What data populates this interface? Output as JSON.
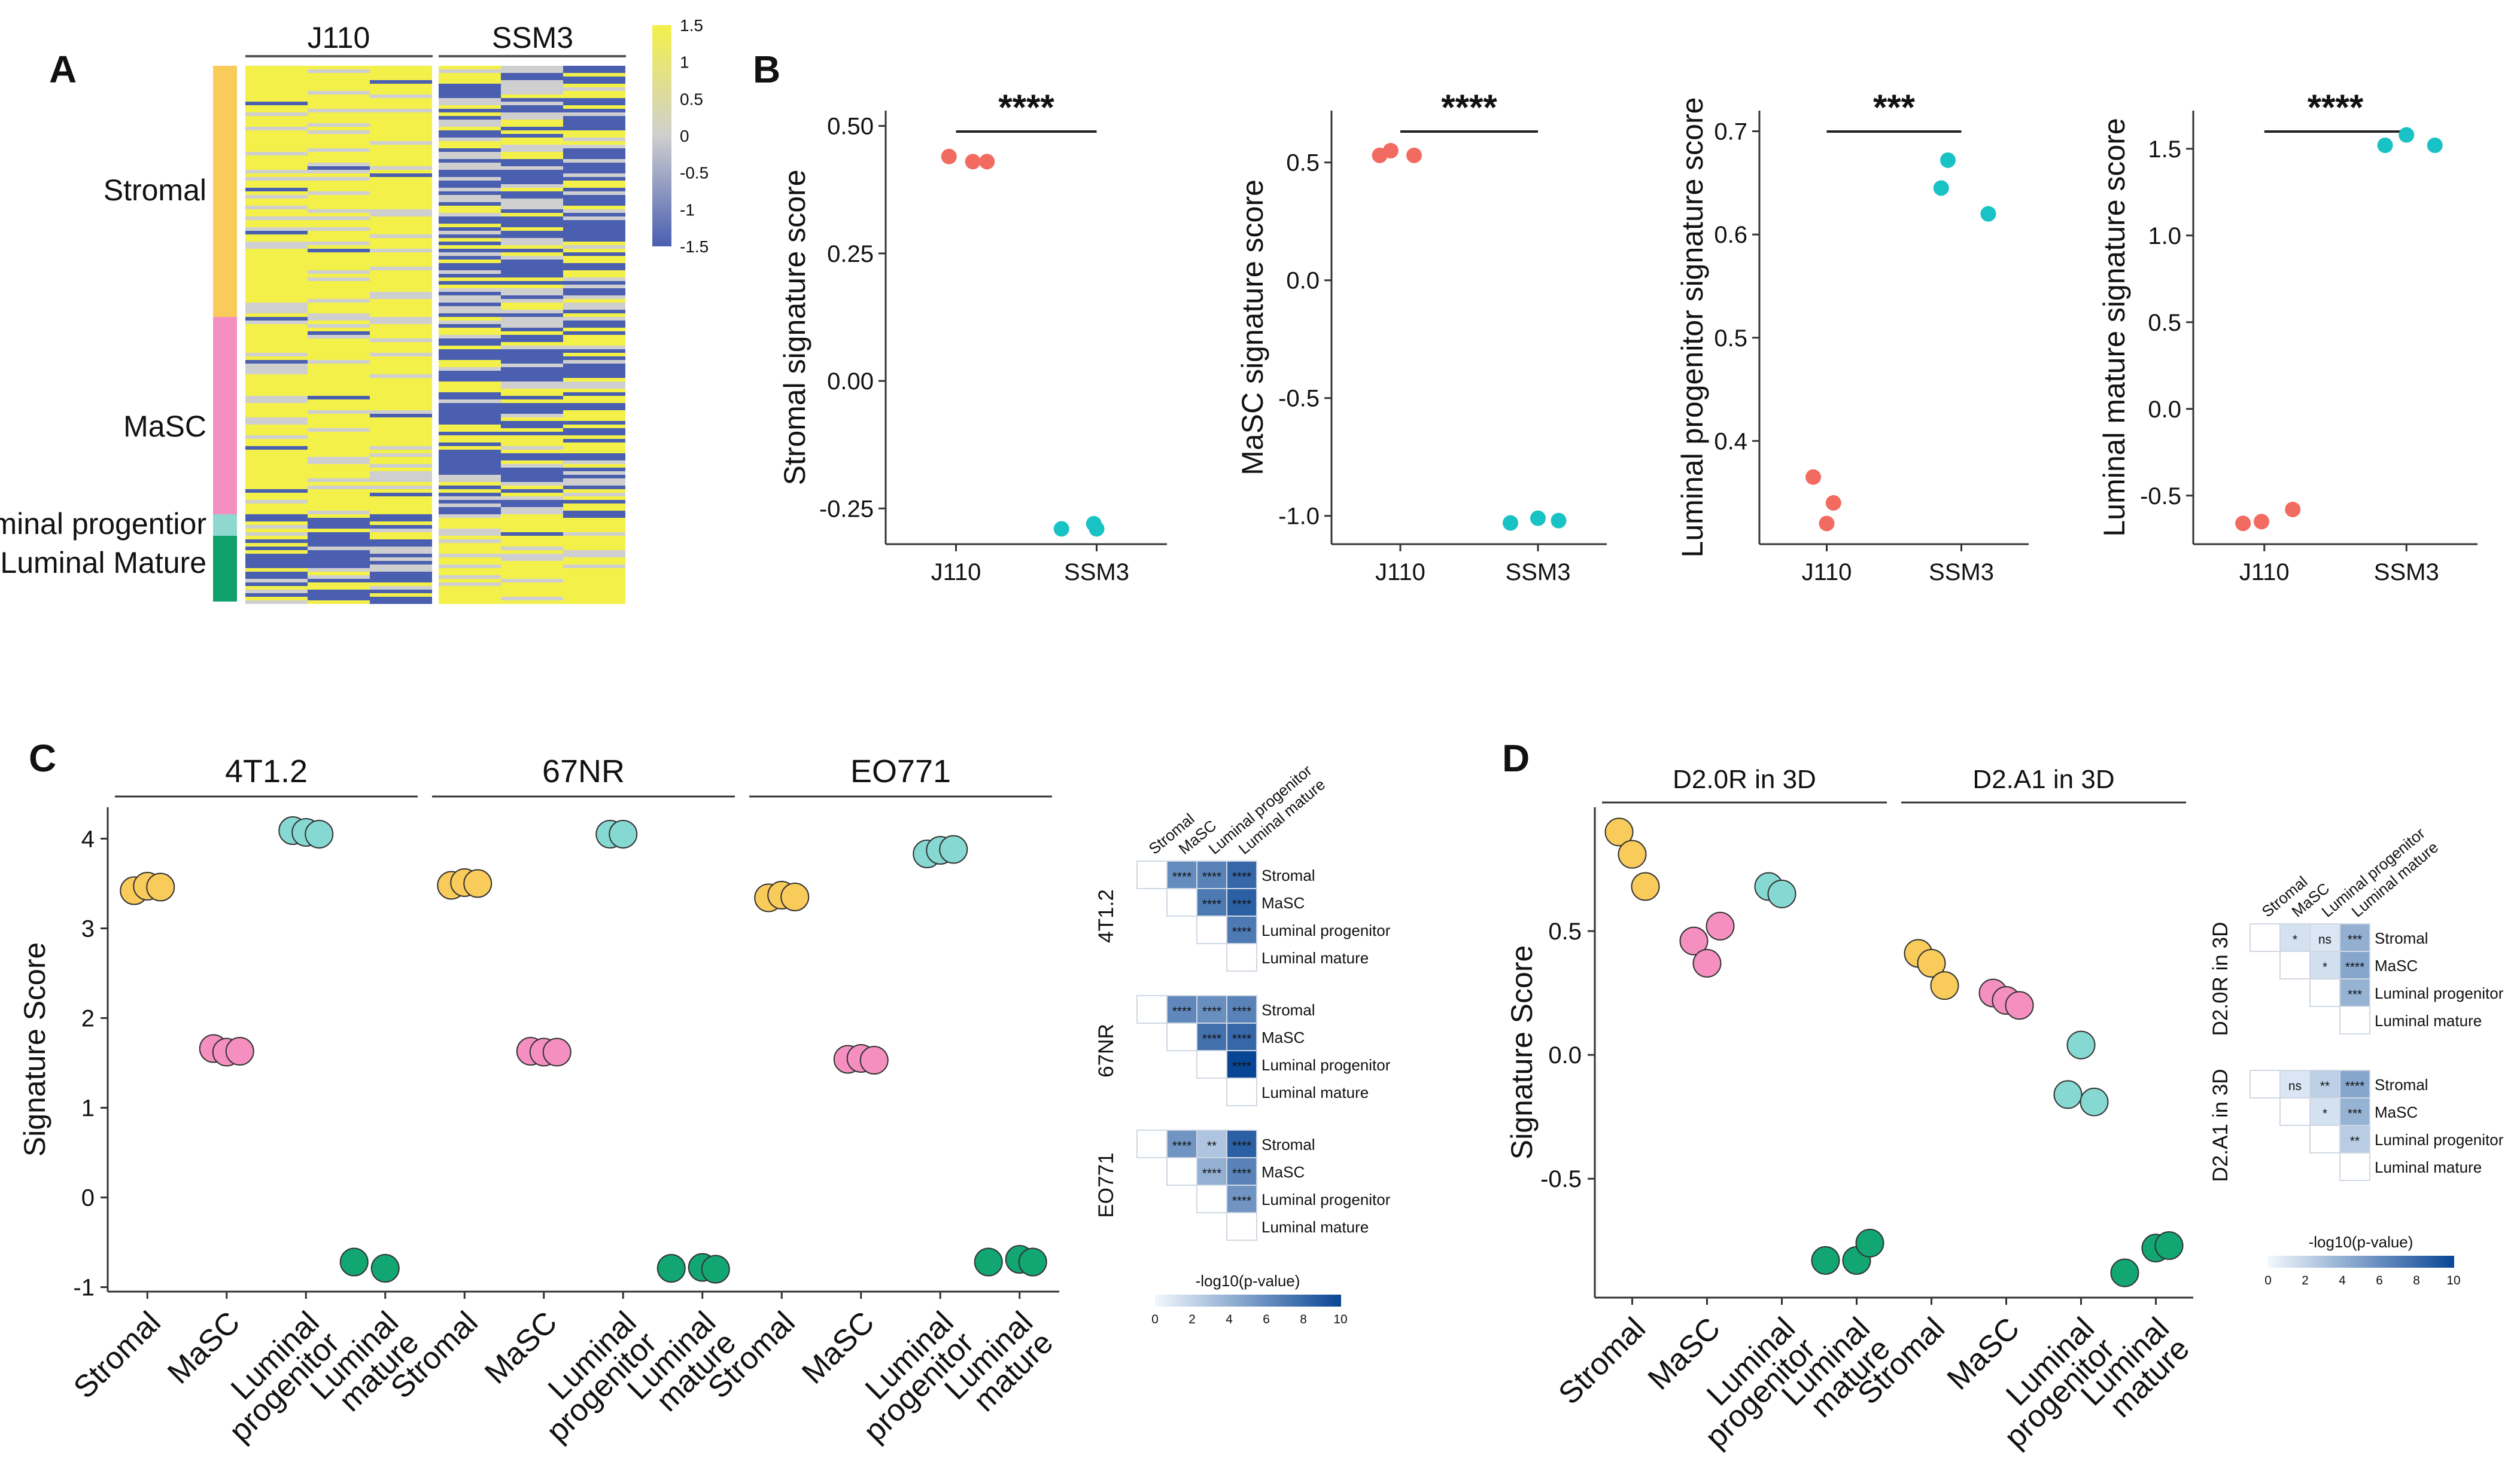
{
  "panels": {
    "A": "A",
    "B": "B",
    "C": "C",
    "D": "D"
  },
  "colors": {
    "red": "#f26b60",
    "cyan": "#19c2c4",
    "stromal": "#f9cb5b",
    "masc": "#f48fc0",
    "lp": "#86d9d2",
    "lm": "#12a673",
    "hm_low": "#4a5fb0",
    "hm_mid": "#cfcfcf",
    "hm_high": "#f3f04a",
    "bar_stromal": "#f7c85c",
    "bar_masc": "#f38bbd",
    "bar_lp": "#8ed8d0",
    "bar_lm": "#0fa06c"
  },
  "heatmap": {
    "groups": [
      "J110",
      "SSM3"
    ],
    "row_labels": [
      "Stromal",
      "MaSC",
      "Luminal progentior",
      "Luminal Mature"
    ],
    "colorbar_ticks": [
      "1.5",
      "1",
      "0.5",
      "0",
      "-0.5",
      "-1",
      "-1.5"
    ]
  },
  "chart_data": [
    {
      "type": "scatter",
      "panel": "B",
      "ylabel": "Stromal signature score",
      "categories": [
        "J110",
        "SSM3"
      ],
      "ylim": [
        -0.32,
        0.53
      ],
      "yticks": [
        0.5,
        0.25,
        0.0,
        -0.25
      ],
      "ytick_labels": [
        "0.50",
        "0.25",
        "0.00",
        "-0.25"
      ],
      "sig": "****",
      "series": [
        {
          "name": "J110",
          "color": "#f26b60",
          "points": [
            [
              0.95,
              0.44
            ],
            [
              1.12,
              0.43
            ],
            [
              1.22,
              0.43
            ]
          ]
        },
        {
          "name": "SSM3",
          "color": "#19c2c4",
          "points": [
            [
              1.75,
              -0.29
            ],
            [
              1.98,
              -0.28
            ],
            [
              2.0,
              -0.29
            ]
          ]
        }
      ]
    },
    {
      "type": "scatter",
      "panel": "B",
      "ylabel": "MaSC signature score",
      "categories": [
        "J110",
        "SSM3"
      ],
      "ylim": [
        -1.12,
        0.72
      ],
      "yticks": [
        0.5,
        0.0,
        -0.5,
        -1.0
      ],
      "ytick_labels": [
        "0.5",
        "0.0",
        "-0.5",
        "-1.0"
      ],
      "sig": "****",
      "series": [
        {
          "name": "J110",
          "color": "#f26b60",
          "points": [
            [
              0.85,
              0.53
            ],
            [
              0.93,
              0.55
            ],
            [
              1.1,
              0.53
            ]
          ]
        },
        {
          "name": "SSM3",
          "color": "#19c2c4",
          "points": [
            [
              1.8,
              -1.03
            ],
            [
              2.0,
              -1.01
            ],
            [
              2.15,
              -1.02
            ]
          ]
        }
      ]
    },
    {
      "type": "scatter",
      "panel": "B",
      "ylabel": "Luminal progenitor signature score",
      "categories": [
        "J110",
        "SSM3"
      ],
      "ylim": [
        0.3,
        0.72
      ],
      "yticks": [
        0.7,
        0.6,
        0.5,
        0.4
      ],
      "ytick_labels": [
        "0.7",
        "0.6",
        "0.5",
        "0.4"
      ],
      "sig": "***",
      "series": [
        {
          "name": "J110",
          "color": "#f26b60",
          "points": [
            [
              0.9,
              0.365
            ],
            [
              1.0,
              0.32
            ],
            [
              1.05,
              0.34
            ]
          ]
        },
        {
          "name": "SSM3",
          "color": "#19c2c4",
          "points": [
            [
              1.85,
              0.645
            ],
            [
              1.9,
              0.672
            ],
            [
              2.2,
              0.62
            ]
          ]
        }
      ]
    },
    {
      "type": "scatter",
      "panel": "B",
      "ylabel": "Luminal mature signature score",
      "categories": [
        "J110",
        "SSM3"
      ],
      "ylim": [
        -0.78,
        1.72
      ],
      "yticks": [
        1.5,
        1.0,
        0.5,
        0.0,
        -0.5
      ],
      "ytick_labels": [
        "1.5",
        "1.0",
        "0.5",
        "0.0",
        "-0.5"
      ],
      "sig": "****",
      "series": [
        {
          "name": "J110",
          "color": "#f26b60",
          "points": [
            [
              0.85,
              -0.66
            ],
            [
              0.98,
              -0.65
            ],
            [
              1.2,
              -0.58
            ]
          ]
        },
        {
          "name": "SSM3",
          "color": "#19c2c4",
          "points": [
            [
              1.85,
              1.52
            ],
            [
              2.0,
              1.58
            ],
            [
              2.2,
              1.52
            ]
          ]
        }
      ]
    },
    {
      "type": "scatter",
      "panel": "C",
      "ylabel": "Signature Score",
      "ylim": [
        -1.05,
        4.35
      ],
      "yticks": [
        4,
        3,
        2,
        1,
        0,
        -1
      ],
      "ytick_labels": [
        "4",
        "3",
        "2",
        "1",
        "0",
        "-1"
      ],
      "categories": [
        "Stromal",
        "MaSC",
        "Luminal progenitor",
        "Luminal mature"
      ],
      "facets": [
        {
          "name": "4T1.2",
          "values": [
            [
              3.42,
              3.47,
              3.46
            ],
            [
              1.66,
              1.62,
              1.63
            ],
            [
              4.09,
              4.07,
              4.05
            ],
            [
              -0.72,
              -0.79
            ]
          ]
        },
        {
          "name": "67NR",
          "values": [
            [
              3.48,
              3.51,
              3.5
            ],
            [
              1.63,
              1.62,
              1.62
            ],
            [
              4.05,
              4.05
            ],
            [
              -0.79,
              -0.78,
              -0.8
            ]
          ]
        },
        {
          "name": "EO771",
          "values": [
            [
              3.34,
              3.37,
              3.35
            ],
            [
              1.54,
              1.55,
              1.53
            ],
            [
              3.83,
              3.87,
              3.88
            ],
            [
              -0.72,
              -0.69,
              -0.72
            ]
          ]
        }
      ]
    },
    {
      "type": "scatter",
      "panel": "D",
      "ylabel": "Signature Score",
      "ylim": [
        -0.98,
        1.0
      ],
      "yticks": [
        0.5,
        0.0,
        -0.5
      ],
      "ytick_labels": [
        "0.5",
        "0.0",
        "-0.5"
      ],
      "categories": [
        "Stromal",
        "MaSC",
        "Luminal progenitor",
        "Luminal mature"
      ],
      "facets": [
        {
          "name": "D2.0R in 3D",
          "values": [
            [
              0.9,
              0.81,
              0.68
            ],
            [
              0.46,
              0.37,
              0.52
            ],
            [
              0.68,
              0.65
            ],
            [
              -0.83,
              -0.83,
              -0.76
            ]
          ]
        },
        {
          "name": "D2.A1 in 3D",
          "values": [
            [
              0.41,
              0.37,
              0.28
            ],
            [
              0.25,
              0.22,
              0.2
            ],
            [
              -0.16,
              0.04,
              -0.19
            ],
            [
              -0.88,
              -0.78,
              -0.77
            ]
          ]
        }
      ]
    }
  ],
  "pval_heatmaps": {
    "col_labels": [
      "Stromal",
      "MaSC",
      "Luminal progenitor",
      "Luminal mature"
    ],
    "row_labels": [
      "Stromal",
      "MaSC",
      "Luminal progenitor",
      "Luminal mature"
    ],
    "legend_title": "-log10(p-value)",
    "legend_ticks": [
      "0",
      "2",
      "4",
      "6",
      "8",
      "10"
    ],
    "C": [
      {
        "name": "4T1.2",
        "cells": [
          {
            "r": 0,
            "c": 1,
            "v": 6.0,
            "sig": "****"
          },
          {
            "r": 0,
            "c": 2,
            "v": 6.5,
            "sig": "****"
          },
          {
            "r": 0,
            "c": 3,
            "v": 8.0,
            "sig": "****"
          },
          {
            "r": 1,
            "c": 2,
            "v": 7.0,
            "sig": "****"
          },
          {
            "r": 1,
            "c": 3,
            "v": 8.5,
            "sig": "****"
          },
          {
            "r": 2,
            "c": 3,
            "v": 7.0,
            "sig": "****"
          }
        ]
      },
      {
        "name": "67NR",
        "cells": [
          {
            "r": 0,
            "c": 1,
            "v": 6.2,
            "sig": "****"
          },
          {
            "r": 0,
            "c": 2,
            "v": 5.8,
            "sig": "****"
          },
          {
            "r": 0,
            "c": 3,
            "v": 6.5,
            "sig": "****"
          },
          {
            "r": 1,
            "c": 2,
            "v": 7.5,
            "sig": "****"
          },
          {
            "r": 1,
            "c": 3,
            "v": 8.0,
            "sig": "****"
          },
          {
            "r": 2,
            "c": 3,
            "v": 10.0,
            "sig": "****"
          }
        ]
      },
      {
        "name": "EO771",
        "cells": [
          {
            "r": 0,
            "c": 1,
            "v": 5.5,
            "sig": "****"
          },
          {
            "r": 0,
            "c": 2,
            "v": 2.8,
            "sig": "**"
          },
          {
            "r": 0,
            "c": 3,
            "v": 8.5,
            "sig": "****"
          },
          {
            "r": 1,
            "c": 2,
            "v": 4.0,
            "sig": "****"
          },
          {
            "r": 1,
            "c": 3,
            "v": 6.5,
            "sig": "****"
          },
          {
            "r": 2,
            "c": 3,
            "v": 5.5,
            "sig": "****"
          }
        ]
      }
    ],
    "D": [
      {
        "name": "D2.0R in 3D",
        "cells": [
          {
            "r": 0,
            "c": 1,
            "v": 1.2,
            "sig": "*"
          },
          {
            "r": 0,
            "c": 2,
            "v": 0.9,
            "sig": "ns"
          },
          {
            "r": 0,
            "c": 3,
            "v": 4.0,
            "sig": "***"
          },
          {
            "r": 1,
            "c": 2,
            "v": 1.3,
            "sig": "*"
          },
          {
            "r": 1,
            "c": 3,
            "v": 4.5,
            "sig": "****"
          },
          {
            "r": 2,
            "c": 3,
            "v": 3.8,
            "sig": "***"
          }
        ]
      },
      {
        "name": "D2.A1 in 3D",
        "cells": [
          {
            "r": 0,
            "c": 1,
            "v": 0.9,
            "sig": "ns"
          },
          {
            "r": 0,
            "c": 2,
            "v": 2.2,
            "sig": "**"
          },
          {
            "r": 0,
            "c": 3,
            "v": 4.5,
            "sig": "****"
          },
          {
            "r": 1,
            "c": 2,
            "v": 1.2,
            "sig": "*"
          },
          {
            "r": 1,
            "c": 3,
            "v": 3.8,
            "sig": "***"
          },
          {
            "r": 2,
            "c": 3,
            "v": 2.4,
            "sig": "**"
          }
        ]
      }
    ]
  }
}
